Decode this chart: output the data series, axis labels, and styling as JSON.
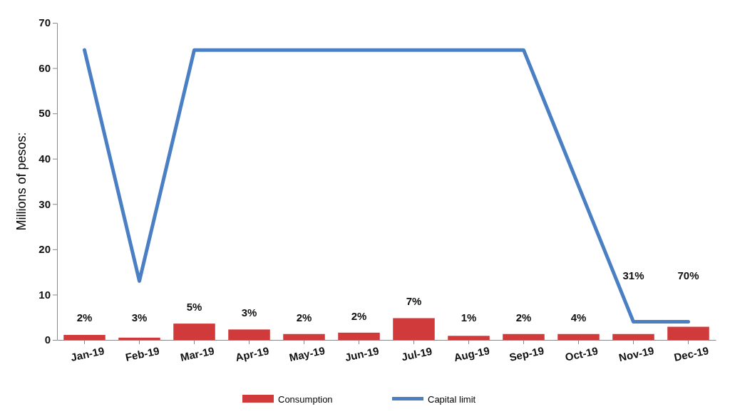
{
  "chart_data": {
    "type": "bar",
    "ylabel": "Millions of pesos:",
    "categories": [
      "Jan-19",
      "Feb-19",
      "Mar-19",
      "Apr-19",
      "May-19",
      "Jun-19",
      "Jul-19",
      "Aug-19",
      "Sep-19",
      "Oct-19",
      "Nov-19",
      "Dec-19"
    ],
    "series": [
      {
        "name": "Consumption",
        "color": "#d03a3a",
        "values": [
          1.1,
          0.5,
          3.6,
          2.3,
          1.3,
          1.6,
          4.8,
          0.9,
          1.3,
          1.3,
          1.3,
          2.9
        ]
      },
      {
        "name": "Capital limit",
        "type": "line",
        "color": "#4a7fc4",
        "values": [
          64,
          13,
          64,
          64,
          64,
          64,
          64,
          64,
          64,
          34,
          4,
          4
        ]
      }
    ],
    "annotations": [
      "2%",
      "3%",
      "5%",
      "3%",
      "2%",
      "2%",
      "7%",
      "1%",
      "2%",
      "4%",
      "31%",
      "70%"
    ],
    "ylim": [
      0,
      70
    ],
    "yticks": [
      0,
      10,
      20,
      30,
      40,
      50,
      60,
      70
    ],
    "grid": false,
    "legend": "bottom"
  }
}
